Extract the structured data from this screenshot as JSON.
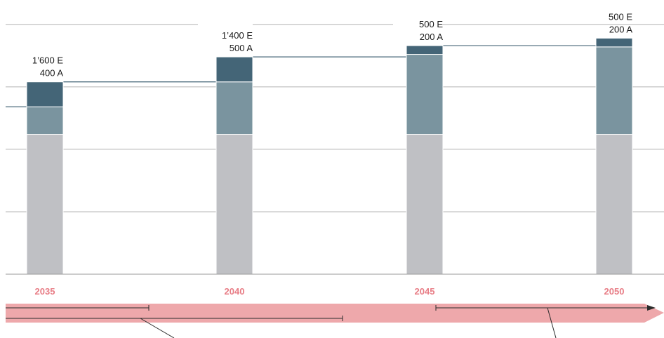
{
  "chart_data": {
    "type": "bar",
    "stacked": true,
    "categories": [
      "2035",
      "2040",
      "2045",
      "2050"
    ],
    "series": [
      {
        "values": [
          5.6,
          5.6,
          5.6,
          5.6
        ],
        "color": "#bfc0c4"
      },
      {
        "values": [
          1.1,
          2.1,
          3.2,
          3.5
        ],
        "color": "#7a949f"
      },
      {
        "values": [
          1.0,
          1.0,
          0.35,
          0.35
        ],
        "color": "#446577"
      }
    ],
    "bar_labels": [
      {
        "line1": "1’600 E",
        "line2": "400 A"
      },
      {
        "line1": "1’400 E",
        "line2": "500 A"
      },
      {
        "line1": "500 E",
        "line2": "200 A"
      },
      {
        "line1": "500 E",
        "line2": "200 A"
      }
    ],
    "ylim": [
      0,
      10.5
    ],
    "gridlines": [
      2.5,
      5,
      7.5,
      10
    ],
    "grid": true,
    "category_label_color": "#e87d86",
    "timeline_arrow_color": "#eea8ab",
    "connector_color": "#446577",
    "gridline_color": "#b4b4b4"
  }
}
